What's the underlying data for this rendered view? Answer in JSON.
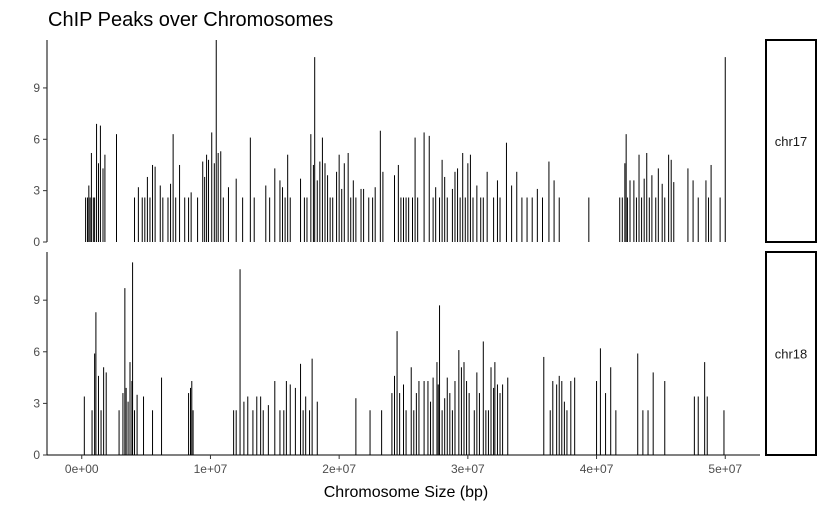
{
  "chart_data": {
    "type": "bar",
    "title": "ChIP Peaks over Chromosomes",
    "xlabel": "Chromosome Size (bp)",
    "ylabel": "",
    "x_ticks": [
      "0e+00",
      "1e+07",
      "2e+07",
      "3e+07",
      "4e+07",
      "5e+07"
    ],
    "x_tick_values": [
      0,
      10000000,
      20000000,
      30000000,
      40000000,
      50000000
    ],
    "xlim": [
      -2700000,
      52700000
    ],
    "ylim": [
      0,
      11.8
    ],
    "y_ticks": [
      0,
      3,
      6,
      9
    ],
    "grid": false,
    "panels": [
      {
        "label": "chr17",
        "peaks": [
          [
            300000,
            2.6
          ],
          [
            450000,
            2.6
          ],
          [
            550000,
            3.3
          ],
          [
            650000,
            2.6
          ],
          [
            750000,
            5.2
          ],
          [
            900000,
            2.6
          ],
          [
            1000000,
            2.6
          ],
          [
            1150000,
            6.9
          ],
          [
            1300000,
            4.6
          ],
          [
            1450000,
            6.8
          ],
          [
            1650000,
            4.3
          ],
          [
            1800000,
            5.1
          ],
          [
            2700000,
            6.3
          ],
          [
            4100000,
            2.6
          ],
          [
            4400000,
            3.2
          ],
          [
            4700000,
            2.6
          ],
          [
            4900000,
            2.6
          ],
          [
            5100000,
            3.8
          ],
          [
            5300000,
            2.6
          ],
          [
            5500000,
            4.5
          ],
          [
            5700000,
            4.4
          ],
          [
            6100000,
            3.3
          ],
          [
            6300000,
            2.6
          ],
          [
            6700000,
            2.6
          ],
          [
            6900000,
            3.4
          ],
          [
            7100000,
            6.3
          ],
          [
            7300000,
            2.6
          ],
          [
            7600000,
            4.5
          ],
          [
            8000000,
            2.6
          ],
          [
            8300000,
            2.6
          ],
          [
            8500000,
            2.9
          ],
          [
            9000000,
            2.6
          ],
          [
            9400000,
            4.7
          ],
          [
            9550000,
            3.8
          ],
          [
            9700000,
            5.1
          ],
          [
            9850000,
            4.8
          ],
          [
            10100000,
            6.4
          ],
          [
            10300000,
            4.6
          ],
          [
            10450000,
            11.8
          ],
          [
            10600000,
            5.2
          ],
          [
            10800000,
            5.3
          ],
          [
            11000000,
            2.6
          ],
          [
            11400000,
            3.2
          ],
          [
            12000000,
            3.7
          ],
          [
            12500000,
            2.6
          ],
          [
            13100000,
            6.1
          ],
          [
            13400000,
            2.6
          ],
          [
            14300000,
            3.3
          ],
          [
            14600000,
            2.6
          ],
          [
            15000000,
            4.3
          ],
          [
            15400000,
            3.6
          ],
          [
            15600000,
            3.2
          ],
          [
            15800000,
            2.6
          ],
          [
            16000000,
            5.1
          ],
          [
            16200000,
            2.6
          ],
          [
            17000000,
            3.7
          ],
          [
            17300000,
            2.6
          ],
          [
            17500000,
            2.6
          ],
          [
            17800000,
            6.3
          ],
          [
            18000000,
            4.5
          ],
          [
            18100000,
            10.8
          ],
          [
            18300000,
            3.6
          ],
          [
            18500000,
            4.7
          ],
          [
            18700000,
            6.1
          ],
          [
            18900000,
            4.6
          ],
          [
            19100000,
            3.9
          ],
          [
            19300000,
            2.6
          ],
          [
            19500000,
            2.6
          ],
          [
            19800000,
            4.1
          ],
          [
            20000000,
            5.1
          ],
          [
            20200000,
            3.1
          ],
          [
            20400000,
            4.6
          ],
          [
            20700000,
            5.2
          ],
          [
            20900000,
            2.6
          ],
          [
            21100000,
            3.6
          ],
          [
            21300000,
            2.6
          ],
          [
            21700000,
            3.1
          ],
          [
            21900000,
            3.1
          ],
          [
            22300000,
            2.6
          ],
          [
            22600000,
            2.6
          ],
          [
            22800000,
            3.2
          ],
          [
            23200000,
            6.5
          ],
          [
            23400000,
            4.1
          ],
          [
            24300000,
            3.9
          ],
          [
            24600000,
            4.5
          ],
          [
            24800000,
            2.6
          ],
          [
            25000000,
            2.6
          ],
          [
            25200000,
            2.6
          ],
          [
            25400000,
            2.6
          ],
          [
            25700000,
            2.6
          ],
          [
            25900000,
            6.1
          ],
          [
            26100000,
            2.6
          ],
          [
            26600000,
            6.4
          ],
          [
            27000000,
            6.2
          ],
          [
            27300000,
            2.6
          ],
          [
            27500000,
            3.2
          ],
          [
            27800000,
            2.6
          ],
          [
            28000000,
            4.8
          ],
          [
            28200000,
            3.8
          ],
          [
            28400000,
            2.6
          ],
          [
            28800000,
            3.1
          ],
          [
            29000000,
            4.1
          ],
          [
            29200000,
            4.3
          ],
          [
            29400000,
            2.6
          ],
          [
            29600000,
            5.2
          ],
          [
            29800000,
            2.6
          ],
          [
            30000000,
            4.6
          ],
          [
            30200000,
            5.1
          ],
          [
            30400000,
            2.6
          ],
          [
            30700000,
            3.3
          ],
          [
            31000000,
            2.6
          ],
          [
            31200000,
            2.6
          ],
          [
            31500000,
            4.1
          ],
          [
            32000000,
            2.6
          ],
          [
            32300000,
            3.6
          ],
          [
            32500000,
            2.6
          ],
          [
            33000000,
            5.8
          ],
          [
            33400000,
            3.3
          ],
          [
            33800000,
            4.1
          ],
          [
            34200000,
            2.6
          ],
          [
            34600000,
            2.6
          ],
          [
            35000000,
            2.6
          ],
          [
            35400000,
            3.1
          ],
          [
            35800000,
            2.6
          ],
          [
            36300000,
            4.7
          ],
          [
            36700000,
            3.6
          ],
          [
            37100000,
            2.6
          ],
          [
            39400000,
            2.6
          ],
          [
            41800000,
            2.6
          ],
          [
            42000000,
            2.6
          ],
          [
            42200000,
            4.6
          ],
          [
            42300000,
            6.3
          ],
          [
            42400000,
            2.6
          ],
          [
            42600000,
            3.6
          ],
          [
            42900000,
            3.6
          ],
          [
            43100000,
            2.6
          ],
          [
            43300000,
            5.1
          ],
          [
            43500000,
            2.6
          ],
          [
            43700000,
            3.7
          ],
          [
            43900000,
            5.2
          ],
          [
            44100000,
            2.6
          ],
          [
            44300000,
            3.9
          ],
          [
            44600000,
            2.6
          ],
          [
            44800000,
            4.3
          ],
          [
            45100000,
            3.4
          ],
          [
            45300000,
            2.6
          ],
          [
            45600000,
            5.1
          ],
          [
            45800000,
            4.8
          ],
          [
            46000000,
            3.5
          ],
          [
            47100000,
            4.3
          ],
          [
            47500000,
            3.6
          ],
          [
            47900000,
            2.6
          ],
          [
            48500000,
            3.6
          ],
          [
            48700000,
            2.6
          ],
          [
            48900000,
            4.5
          ],
          [
            49600000,
            2.6
          ],
          [
            50000000,
            10.8
          ]
        ]
      },
      {
        "label": "chr18",
        "peaks": [
          [
            200000,
            3.4
          ],
          [
            800000,
            2.6
          ],
          [
            1000000,
            5.9
          ],
          [
            1100000,
            8.3
          ],
          [
            1300000,
            4.6
          ],
          [
            1500000,
            2.6
          ],
          [
            1700000,
            5.1
          ],
          [
            1900000,
            4.8
          ],
          [
            2900000,
            2.6
          ],
          [
            3200000,
            3.6
          ],
          [
            3350000,
            9.7
          ],
          [
            3450000,
            3.9
          ],
          [
            3600000,
            3.1
          ],
          [
            3750000,
            5.4
          ],
          [
            3900000,
            4.3
          ],
          [
            3950000,
            11.2
          ],
          [
            4100000,
            2.6
          ],
          [
            4300000,
            3.5
          ],
          [
            4800000,
            3.4
          ],
          [
            5500000,
            2.6
          ],
          [
            6200000,
            4.5
          ],
          [
            8300000,
            3.6
          ],
          [
            8450000,
            3.9
          ],
          [
            8550000,
            4.3
          ],
          [
            8650000,
            2.6
          ],
          [
            11800000,
            2.6
          ],
          [
            12000000,
            2.6
          ],
          [
            12300000,
            10.8
          ],
          [
            12600000,
            3.1
          ],
          [
            12900000,
            3.4
          ],
          [
            13300000,
            2.6
          ],
          [
            13600000,
            3.4
          ],
          [
            13900000,
            3.4
          ],
          [
            14100000,
            2.6
          ],
          [
            14500000,
            2.9
          ],
          [
            15000000,
            4.3
          ],
          [
            15400000,
            2.6
          ],
          [
            15700000,
            2.6
          ],
          [
            15900000,
            4.3
          ],
          [
            16200000,
            4.1
          ],
          [
            16600000,
            3.9
          ],
          [
            17000000,
            5.3
          ],
          [
            17200000,
            2.6
          ],
          [
            17400000,
            3.4
          ],
          [
            17700000,
            2.6
          ],
          [
            17900000,
            5.6
          ],
          [
            18300000,
            3.1
          ],
          [
            21300000,
            3.3
          ],
          [
            22400000,
            2.6
          ],
          [
            23300000,
            2.6
          ],
          [
            24100000,
            3.6
          ],
          [
            24300000,
            4.6
          ],
          [
            24500000,
            7.2
          ],
          [
            24700000,
            3.6
          ],
          [
            25000000,
            4.1
          ],
          [
            25200000,
            2.6
          ],
          [
            25600000,
            5.1
          ],
          [
            25800000,
            2.6
          ],
          [
            26000000,
            3.6
          ],
          [
            26200000,
            4.3
          ],
          [
            26600000,
            4.3
          ],
          [
            26900000,
            4.3
          ],
          [
            27100000,
            3.1
          ],
          [
            27300000,
            4.5
          ],
          [
            27600000,
            5.4
          ],
          [
            27700000,
            4.1
          ],
          [
            27800000,
            8.7
          ],
          [
            28000000,
            2.6
          ],
          [
            28200000,
            3.3
          ],
          [
            28400000,
            4.5
          ],
          [
            28600000,
            3.6
          ],
          [
            28800000,
            2.6
          ],
          [
            29000000,
            4.3
          ],
          [
            29300000,
            6.1
          ],
          [
            29500000,
            5.1
          ],
          [
            29700000,
            5.4
          ],
          [
            29900000,
            4.3
          ],
          [
            30100000,
            3.6
          ],
          [
            30500000,
            2.6
          ],
          [
            30700000,
            4.8
          ],
          [
            30900000,
            3.6
          ],
          [
            31200000,
            6.6
          ],
          [
            31400000,
            2.6
          ],
          [
            31600000,
            2.6
          ],
          [
            31800000,
            5.1
          ],
          [
            32000000,
            3.9
          ],
          [
            32100000,
            5.4
          ],
          [
            32300000,
            4.1
          ],
          [
            32500000,
            3.6
          ],
          [
            32700000,
            4.1
          ],
          [
            33100000,
            4.5
          ],
          [
            35900000,
            5.7
          ],
          [
            36400000,
            2.6
          ],
          [
            36600000,
            4.3
          ],
          [
            36900000,
            4.1
          ],
          [
            37100000,
            4.6
          ],
          [
            37300000,
            4.3
          ],
          [
            37500000,
            3.1
          ],
          [
            37700000,
            2.6
          ],
          [
            38000000,
            4.3
          ],
          [
            38300000,
            4.5
          ],
          [
            40000000,
            4.3
          ],
          [
            40300000,
            6.2
          ],
          [
            40700000,
            3.6
          ],
          [
            41100000,
            5.1
          ],
          [
            41500000,
            2.6
          ],
          [
            43200000,
            5.9
          ],
          [
            43600000,
            2.6
          ],
          [
            44000000,
            2.6
          ],
          [
            44400000,
            4.8
          ],
          [
            45300000,
            4.3
          ],
          [
            47600000,
            3.4
          ],
          [
            47900000,
            3.4
          ],
          [
            48400000,
            5.4
          ],
          [
            48600000,
            3.4
          ],
          [
            49900000,
            2.6
          ]
        ]
      }
    ]
  }
}
